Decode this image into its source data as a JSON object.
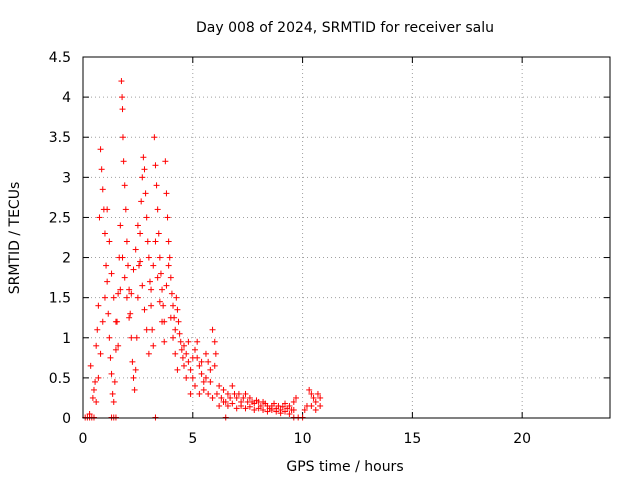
{
  "chart_data": {
    "type": "scatter",
    "title": "Day 008 of 2024, SRMTID for receiver salu",
    "xlabel": "GPS time / hours",
    "ylabel": "SRMTID / TECUs",
    "xlim": [
      0,
      24
    ],
    "ylim": [
      0,
      4.5
    ],
    "xticks": [
      0,
      5,
      10,
      15,
      20
    ],
    "xtick_labels": [
      "0",
      "5",
      "10",
      "15",
      "20"
    ],
    "yticks": [
      0,
      0.5,
      1,
      1.5,
      2,
      2.5,
      3,
      3.5,
      4,
      4.5
    ],
    "ytick_labels": [
      "0",
      "0.5",
      "1",
      "1.5",
      "2",
      "2.5",
      "3",
      "3.5",
      "4",
      "4.5"
    ],
    "grid": true,
    "marker": "+",
    "series": [
      {
        "name": "SRMTID",
        "color": "#ff0000",
        "points": [
          [
            0.1,
            0.0
          ],
          [
            0.2,
            0.0
          ],
          [
            0.3,
            0.0
          ],
          [
            0.4,
            0.0
          ],
          [
            0.5,
            0.0
          ],
          [
            0.3,
            0.05
          ],
          [
            1.3,
            0.0
          ],
          [
            1.4,
            0.0
          ],
          [
            1.5,
            0.0
          ],
          [
            3.3,
            0.0
          ],
          [
            6.5,
            0.0
          ],
          [
            9.6,
            0.0
          ],
          [
            9.8,
            0.0
          ],
          [
            10.0,
            0.0
          ],
          [
            0.35,
            0.65
          ],
          [
            0.45,
            0.25
          ],
          [
            0.5,
            0.35
          ],
          [
            0.55,
            0.45
          ],
          [
            0.6,
            0.9
          ],
          [
            0.65,
            1.1
          ],
          [
            0.7,
            1.4
          ],
          [
            0.75,
            2.5
          ],
          [
            0.8,
            3.35
          ],
          [
            0.85,
            3.1
          ],
          [
            0.9,
            2.85
          ],
          [
            0.95,
            2.6
          ],
          [
            1.0,
            2.3
          ],
          [
            1.05,
            1.9
          ],
          [
            1.1,
            1.7
          ],
          [
            1.15,
            1.3
          ],
          [
            1.2,
            1.0
          ],
          [
            1.25,
            0.75
          ],
          [
            1.3,
            0.55
          ],
          [
            1.35,
            0.3
          ],
          [
            1.4,
            0.2
          ],
          [
            1.45,
            0.45
          ],
          [
            1.5,
            0.85
          ],
          [
            1.55,
            1.2
          ],
          [
            1.6,
            1.55
          ],
          [
            1.65,
            2.0
          ],
          [
            1.7,
            2.4
          ],
          [
            1.75,
            4.2
          ],
          [
            1.78,
            4.0
          ],
          [
            1.8,
            3.85
          ],
          [
            1.82,
            3.5
          ],
          [
            1.85,
            3.2
          ],
          [
            1.9,
            2.9
          ],
          [
            1.95,
            2.6
          ],
          [
            2.0,
            2.2
          ],
          [
            2.05,
            1.9
          ],
          [
            2.1,
            1.6
          ],
          [
            2.15,
            1.3
          ],
          [
            2.2,
            1.0
          ],
          [
            2.25,
            0.7
          ],
          [
            2.3,
            0.5
          ],
          [
            2.35,
            0.35
          ],
          [
            2.4,
            0.6
          ],
          [
            2.45,
            1.0
          ],
          [
            2.5,
            1.5
          ],
          [
            2.55,
            1.9
          ],
          [
            2.6,
            2.3
          ],
          [
            2.65,
            2.7
          ],
          [
            2.7,
            3.0
          ],
          [
            2.75,
            3.25
          ],
          [
            2.8,
            3.1
          ],
          [
            2.85,
            2.8
          ],
          [
            2.9,
            2.5
          ],
          [
            2.95,
            2.2
          ],
          [
            3.0,
            2.0
          ],
          [
            3.05,
            1.7
          ],
          [
            3.1,
            1.4
          ],
          [
            3.15,
            1.1
          ],
          [
            3.2,
            0.9
          ],
          [
            3.25,
            3.5
          ],
          [
            3.3,
            3.15
          ],
          [
            3.35,
            2.9
          ],
          [
            3.4,
            2.6
          ],
          [
            3.45,
            2.3
          ],
          [
            3.5,
            2.0
          ],
          [
            3.55,
            1.8
          ],
          [
            3.6,
            1.6
          ],
          [
            3.65,
            1.4
          ],
          [
            3.7,
            1.2
          ],
          [
            3.75,
            3.2
          ],
          [
            3.8,
            2.8
          ],
          [
            3.85,
            2.5
          ],
          [
            3.9,
            2.2
          ],
          [
            3.95,
            2.0
          ],
          [
            4.0,
            1.75
          ],
          [
            4.05,
            1.55
          ],
          [
            4.1,
            1.4
          ],
          [
            4.15,
            1.25
          ],
          [
            4.2,
            1.1
          ],
          [
            4.25,
            1.5
          ],
          [
            4.3,
            1.35
          ],
          [
            4.35,
            1.2
          ],
          [
            4.4,
            1.05
          ],
          [
            4.45,
            0.95
          ],
          [
            4.5,
            0.85
          ],
          [
            4.55,
            0.75
          ],
          [
            4.6,
            0.65
          ],
          [
            0.6,
            0.2
          ],
          [
            0.7,
            0.5
          ],
          [
            0.8,
            0.8
          ],
          [
            0.9,
            1.2
          ],
          [
            1.0,
            1.5
          ],
          [
            1.1,
            2.6
          ],
          [
            1.2,
            2.2
          ],
          [
            1.3,
            1.8
          ],
          [
            1.4,
            1.5
          ],
          [
            1.5,
            1.2
          ],
          [
            1.6,
            0.9
          ],
          [
            1.7,
            1.6
          ],
          [
            1.8,
            2.0
          ],
          [
            1.9,
            1.75
          ],
          [
            2.0,
            1.5
          ],
          [
            2.1,
            1.25
          ],
          [
            2.2,
            1.55
          ],
          [
            2.3,
            1.85
          ],
          [
            2.4,
            2.1
          ],
          [
            2.5,
            2.4
          ],
          [
            2.6,
            1.95
          ],
          [
            2.7,
            1.65
          ],
          [
            2.8,
            1.35
          ],
          [
            2.9,
            1.1
          ],
          [
            3.0,
            0.8
          ],
          [
            3.1,
            1.6
          ],
          [
            3.2,
            1.9
          ],
          [
            3.3,
            2.2
          ],
          [
            3.4,
            1.75
          ],
          [
            3.5,
            1.45
          ],
          [
            3.6,
            1.2
          ],
          [
            3.7,
            0.95
          ],
          [
            3.8,
            1.65
          ],
          [
            3.9,
            1.9
          ],
          [
            4.0,
            1.25
          ],
          [
            4.1,
            1.0
          ],
          [
            4.2,
            0.8
          ],
          [
            4.3,
            0.6
          ],
          [
            4.6,
            0.9
          ],
          [
            4.7,
            0.8
          ],
          [
            4.8,
            0.7
          ],
          [
            4.9,
            0.6
          ],
          [
            5.0,
            0.5
          ],
          [
            5.1,
            0.85
          ],
          [
            5.2,
            0.75
          ],
          [
            5.3,
            0.65
          ],
          [
            5.4,
            0.55
          ],
          [
            5.5,
            0.45
          ],
          [
            5.6,
            0.8
          ],
          [
            5.7,
            0.7
          ],
          [
            5.8,
            0.6
          ],
          [
            5.9,
            1.1
          ],
          [
            6.0,
            0.95
          ],
          [
            6.05,
            0.8
          ],
          [
            6.1,
            0.3
          ],
          [
            6.2,
            0.4
          ],
          [
            6.3,
            0.25
          ],
          [
            6.4,
            0.35
          ],
          [
            6.5,
            0.2
          ],
          [
            6.6,
            0.3
          ],
          [
            6.7,
            0.25
          ],
          [
            6.8,
            0.4
          ],
          [
            6.9,
            0.3
          ],
          [
            7.0,
            0.25
          ],
          [
            7.1,
            0.3
          ],
          [
            7.2,
            0.2
          ],
          [
            7.3,
            0.25
          ],
          [
            7.4,
            0.3
          ],
          [
            7.5,
            0.2
          ],
          [
            7.6,
            0.25
          ],
          [
            7.7,
            0.2
          ],
          [
            7.8,
            0.18
          ],
          [
            7.9,
            0.22
          ],
          [
            8.0,
            0.2
          ],
          [
            8.1,
            0.15
          ],
          [
            8.2,
            0.2
          ],
          [
            8.3,
            0.18
          ],
          [
            8.4,
            0.15
          ],
          [
            8.5,
            0.12
          ],
          [
            8.6,
            0.15
          ],
          [
            8.7,
            0.18
          ],
          [
            8.8,
            0.12
          ],
          [
            8.9,
            0.15
          ],
          [
            9.0,
            0.1
          ],
          [
            9.1,
            0.14
          ],
          [
            9.2,
            0.18
          ],
          [
            9.3,
            0.12
          ],
          [
            9.4,
            0.15
          ],
          [
            9.5,
            0.1
          ],
          [
            9.6,
            0.2
          ],
          [
            9.7,
            0.25
          ],
          [
            10.1,
            0.1
          ],
          [
            10.2,
            0.15
          ],
          [
            10.3,
            0.35
          ],
          [
            10.4,
            0.3
          ],
          [
            10.5,
            0.25
          ],
          [
            10.6,
            0.2
          ],
          [
            10.7,
            0.3
          ],
          [
            10.8,
            0.25
          ],
          [
            4.7,
            0.5
          ],
          [
            4.8,
            0.95
          ],
          [
            4.9,
            0.3
          ],
          [
            5.0,
            0.75
          ],
          [
            5.1,
            0.4
          ],
          [
            5.2,
            0.95
          ],
          [
            5.3,
            0.3
          ],
          [
            5.4,
            0.7
          ],
          [
            5.5,
            0.35
          ],
          [
            5.6,
            0.5
          ],
          [
            5.7,
            0.3
          ],
          [
            5.8,
            0.45
          ],
          [
            5.9,
            0.25
          ],
          [
            6.0,
            0.65
          ],
          [
            6.2,
            0.15
          ],
          [
            6.4,
            0.2
          ],
          [
            6.6,
            0.15
          ],
          [
            6.8,
            0.18
          ],
          [
            7.0,
            0.12
          ],
          [
            7.2,
            0.15
          ],
          [
            7.4,
            0.12
          ],
          [
            7.6,
            0.14
          ],
          [
            7.8,
            0.1
          ],
          [
            8.0,
            0.12
          ],
          [
            8.2,
            0.1
          ],
          [
            8.4,
            0.08
          ],
          [
            8.6,
            0.1
          ],
          [
            8.8,
            0.08
          ],
          [
            9.0,
            0.06
          ],
          [
            9.2,
            0.08
          ],
          [
            9.4,
            0.05
          ],
          [
            9.6,
            0.1
          ],
          [
            10.4,
            0.15
          ],
          [
            10.6,
            0.1
          ],
          [
            10.8,
            0.15
          ]
        ]
      }
    ]
  }
}
